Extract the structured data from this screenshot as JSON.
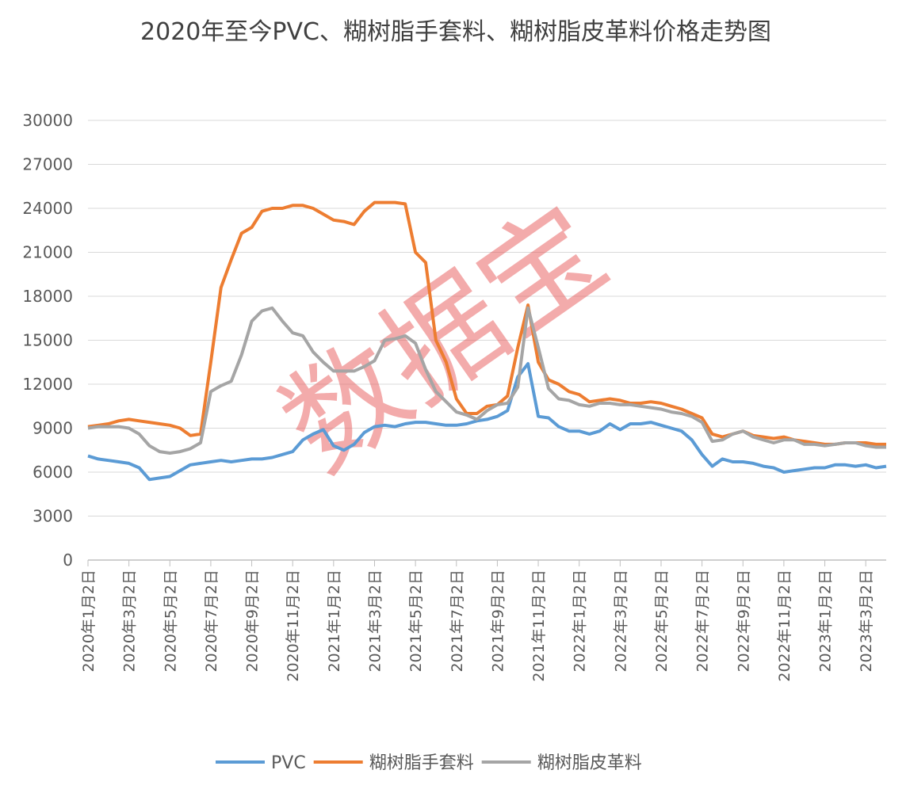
{
  "chart_data": {
    "type": "line",
    "title": "2020年至今PVC、糊树脂手套料、糊树脂皮革料价格走势图",
    "watermark": "数据宝",
    "categories": [
      "2020年1月2日",
      null,
      null,
      null,
      "2020年3月2日",
      null,
      null,
      null,
      "2020年5月2日",
      null,
      null,
      null,
      "2020年7月2日",
      null,
      null,
      null,
      "2020年9月2日",
      null,
      null,
      null,
      "2020年11月2日",
      null,
      null,
      null,
      "2021年1月2日",
      null,
      null,
      null,
      "2021年3月2日",
      null,
      null,
      null,
      "2021年5月2日",
      null,
      null,
      null,
      "2021年7月2日",
      null,
      null,
      null,
      "2021年9月2日",
      null,
      null,
      null,
      "2021年11月2日",
      null,
      null,
      null,
      "2022年1月2日",
      null,
      null,
      null,
      "2022年3月2日",
      null,
      null,
      null,
      "2022年5月2日",
      null,
      null,
      null,
      "2022年7月2日",
      null,
      null,
      null,
      "2022年9月2日",
      null,
      null,
      null,
      "2022年11月2日",
      null,
      null,
      null,
      "2023年1月2日",
      null,
      null,
      null,
      "2023年3月2日",
      null,
      null
    ],
    "series": [
      {
        "name": "PVC",
        "color": "#5b9bd5",
        "values": [
          7100,
          6900,
          6800,
          6700,
          6600,
          6300,
          5500,
          5600,
          5700,
          6100,
          6500,
          6600,
          6700,
          6800,
          6700,
          6800,
          6900,
          6900,
          7000,
          7200,
          7400,
          8200,
          8600,
          8900,
          7800,
          7500,
          7900,
          8700,
          9100,
          9200,
          9100,
          9300,
          9400,
          9400,
          9300,
          9200,
          9200,
          9300,
          9500,
          9600,
          9800,
          10200,
          12500,
          13400,
          9800,
          9700,
          9100,
          8800,
          8800,
          8600,
          8800,
          9300,
          8900,
          9300,
          9300,
          9400,
          9200,
          9000,
          8800,
          8200,
          7200,
          6400,
          6900,
          6700,
          6700,
          6600,
          6400,
          6300,
          6000,
          6100,
          6200,
          6300,
          6300,
          6500,
          6500,
          6400,
          6500,
          6300,
          6400
        ]
      },
      {
        "name": "糊树脂手套料",
        "color": "#ed7d31",
        "values": [
          9100,
          9200,
          9300,
          9500,
          9600,
          9500,
          9400,
          9300,
          9200,
          9000,
          8500,
          8600,
          13500,
          18600,
          20500,
          22300,
          22700,
          23800,
          24000,
          24000,
          24200,
          24200,
          24000,
          23600,
          23200,
          23100,
          22900,
          23800,
          24400,
          24400,
          24400,
          24300,
          21000,
          20300,
          15000,
          13500,
          11000,
          10000,
          10000,
          10500,
          10600,
          11200,
          14500,
          17400,
          13500,
          12300,
          12000,
          11500,
          11300,
          10800,
          10900,
          11000,
          10900,
          10700,
          10700,
          10800,
          10700,
          10500,
          10300,
          10000,
          9700,
          8600,
          8400,
          8600,
          8800,
          8500,
          8400,
          8300,
          8400,
          8200,
          8100,
          8000,
          7900,
          7900,
          8000,
          8000,
          8000,
          7900,
          7900
        ]
      },
      {
        "name": "糊树脂皮革料",
        "color": "#a5a5a5",
        "values": [
          9000,
          9100,
          9100,
          9100,
          9000,
          8600,
          7800,
          7400,
          7300,
          7400,
          7600,
          8000,
          11500,
          11900,
          12200,
          14000,
          16300,
          17000,
          17200,
          16300,
          15500,
          15300,
          14200,
          13500,
          12900,
          12900,
          12900,
          13200,
          13600,
          15000,
          15100,
          15300,
          14800,
          13000,
          11500,
          10800,
          10100,
          9900,
          9600,
          10200,
          10600,
          10700,
          11800,
          17200,
          14500,
          11700,
          11000,
          10900,
          10600,
          10500,
          10700,
          10700,
          10600,
          10600,
          10500,
          10400,
          10300,
          10100,
          10000,
          9800,
          9400,
          8100,
          8200,
          8600,
          8800,
          8400,
          8200,
          8000,
          8200,
          8200,
          7900,
          7900,
          7800,
          7900,
          8000,
          8000,
          7800,
          7700,
          7700
        ]
      }
    ],
    "ylim": [
      0,
      30000
    ],
    "yticks": [
      0,
      3000,
      6000,
      9000,
      12000,
      15000,
      18000,
      21000,
      24000,
      27000,
      30000
    ],
    "grid": true
  }
}
